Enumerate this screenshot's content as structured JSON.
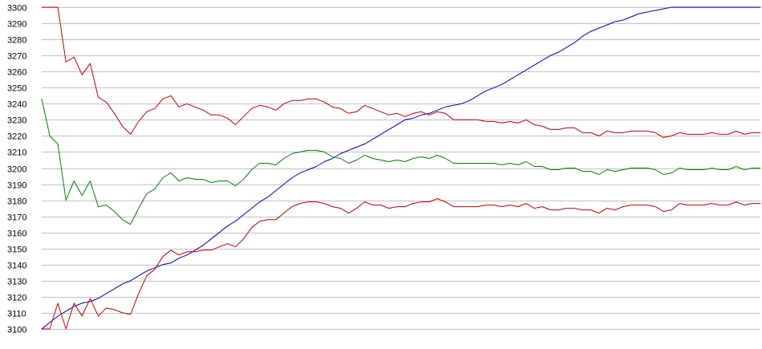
{
  "chart_data": {
    "type": "line",
    "title": "",
    "xlabel": "",
    "ylabel": "",
    "ylim": [
      3100,
      3300
    ],
    "yticks": [
      3100,
      3110,
      3120,
      3130,
      3140,
      3150,
      3160,
      3170,
      3180,
      3190,
      3200,
      3210,
      3220,
      3230,
      3240,
      3250,
      3260,
      3270,
      3280,
      3290,
      3300
    ],
    "grid": true,
    "x": [
      1,
      2,
      3,
      4,
      5,
      6,
      7,
      8,
      9,
      10,
      11,
      12,
      13,
      14,
      15,
      16,
      17,
      18,
      19,
      20,
      21,
      22,
      23,
      24,
      25,
      26,
      27,
      28,
      29,
      30,
      31,
      32,
      33,
      34,
      35,
      36,
      37,
      38,
      39,
      40,
      41,
      42,
      43,
      44,
      45,
      46,
      47,
      48,
      49,
      50,
      51,
      52,
      53,
      54,
      55,
      56,
      57,
      58,
      59,
      60,
      61,
      62,
      63,
      64,
      65,
      66,
      67,
      68,
      69,
      70,
      71,
      72,
      73,
      74,
      75,
      76,
      77,
      78,
      79,
      80,
      81,
      82,
      83,
      84,
      85,
      86,
      87,
      88,
      89,
      90
    ],
    "xlim": [
      1,
      90
    ],
    "series": [
      {
        "color": "#0000c0",
        "values": [
          3100,
          3104,
          3108,
          3111,
          3114,
          3116,
          3117,
          3119,
          3122,
          3125,
          3128,
          3130,
          3133,
          3136,
          3138,
          3140,
          3141,
          3144,
          3146,
          3149,
          3152,
          3156,
          3160,
          3164,
          3167,
          3171,
          3175,
          3179,
          3182,
          3186,
          3190,
          3194,
          3197,
          3199,
          3201,
          3204,
          3206,
          3209,
          3211,
          3213,
          3215,
          3218,
          3221,
          3224,
          3227,
          3230,
          3231,
          3233,
          3234,
          3236,
          3238,
          3239,
          3240,
          3242,
          3245,
          3248,
          3250,
          3252,
          3255,
          3258,
          3261,
          3264,
          3267,
          3270,
          3272,
          3275,
          3278,
          3282,
          3285,
          3287,
          3289,
          3291,
          3292,
          3294,
          3296,
          3297,
          3298,
          3299,
          3300,
          3301,
          3302,
          3303,
          3304,
          3304,
          3305,
          3305,
          3306,
          3306,
          3307,
          3307
        ]
      },
      {
        "color": "#c00000",
        "values": [
          3300,
          3300,
          3300,
          3266,
          3269,
          3258,
          3265,
          3244,
          3241,
          3234,
          3226,
          3221,
          3229,
          3235,
          3237,
          3243,
          3245,
          3238,
          3240,
          3238,
          3236,
          3233,
          3233,
          3231,
          3227,
          3232,
          3237,
          3239,
          3238,
          3236,
          3240,
          3242,
          3242,
          3243,
          3243,
          3241,
          3238,
          3237,
          3234,
          3235,
          3239,
          3237,
          3235,
          3233,
          3234,
          3232,
          3234,
          3235,
          3233,
          3235,
          3234,
          3230,
          3230,
          3230,
          3230,
          3229,
          3229,
          3228,
          3229,
          3228,
          3230,
          3227,
          3226,
          3224,
          3224,
          3225,
          3225,
          3222,
          3222,
          3220,
          3223,
          3222,
          3222,
          3223,
          3223,
          3223,
          3222,
          3219,
          3220,
          3222,
          3221,
          3221,
          3221,
          3222,
          3221,
          3221,
          3223,
          3221,
          3222,
          3222
        ]
      },
      {
        "color": "#008000",
        "values": [
          3243,
          3220,
          3215,
          3180,
          3192,
          3183,
          3192,
          3176,
          3177,
          3173,
          3168,
          3165,
          3175,
          3184,
          3187,
          3194,
          3197,
          3192,
          3194,
          3193,
          3193,
          3191,
          3192,
          3192,
          3189,
          3193,
          3199,
          3203,
          3203,
          3202,
          3206,
          3209,
          3210,
          3211,
          3211,
          3210,
          3207,
          3206,
          3203,
          3205,
          3208,
          3206,
          3205,
          3204,
          3205,
          3204,
          3206,
          3207,
          3206,
          3208,
          3206,
          3203,
          3203,
          3203,
          3203,
          3203,
          3203,
          3202,
          3203,
          3202,
          3204,
          3201,
          3201,
          3199,
          3199,
          3200,
          3200,
          3198,
          3198,
          3196,
          3199,
          3198,
          3199,
          3200,
          3200,
          3200,
          3199,
          3196,
          3197,
          3200,
          3199,
          3199,
          3199,
          3200,
          3199,
          3199,
          3201,
          3199,
          3200,
          3200
        ]
      },
      {
        "color": "#c00000",
        "values": [
          3100,
          3100,
          3116,
          3100,
          3116,
          3108,
          3119,
          3108,
          3113,
          3112,
          3110,
          3109,
          3122,
          3133,
          3137,
          3145,
          3149,
          3146,
          3148,
          3148,
          3149,
          3149,
          3151,
          3153,
          3151,
          3156,
          3163,
          3167,
          3168,
          3168,
          3172,
          3176,
          3178,
          3179,
          3179,
          3178,
          3176,
          3175,
          3172,
          3175,
          3179,
          3177,
          3177,
          3175,
          3176,
          3176,
          3178,
          3179,
          3179,
          3181,
          3179,
          3176,
          3176,
          3176,
          3176,
          3177,
          3177,
          3176,
          3177,
          3176,
          3178,
          3175,
          3176,
          3174,
          3174,
          3175,
          3175,
          3174,
          3174,
          3172,
          3175,
          3174,
          3176,
          3177,
          3177,
          3177,
          3176,
          3173,
          3174,
          3178,
          3177,
          3177,
          3177,
          3178,
          3177,
          3177,
          3179,
          3177,
          3178,
          3178
        ]
      }
    ]
  }
}
